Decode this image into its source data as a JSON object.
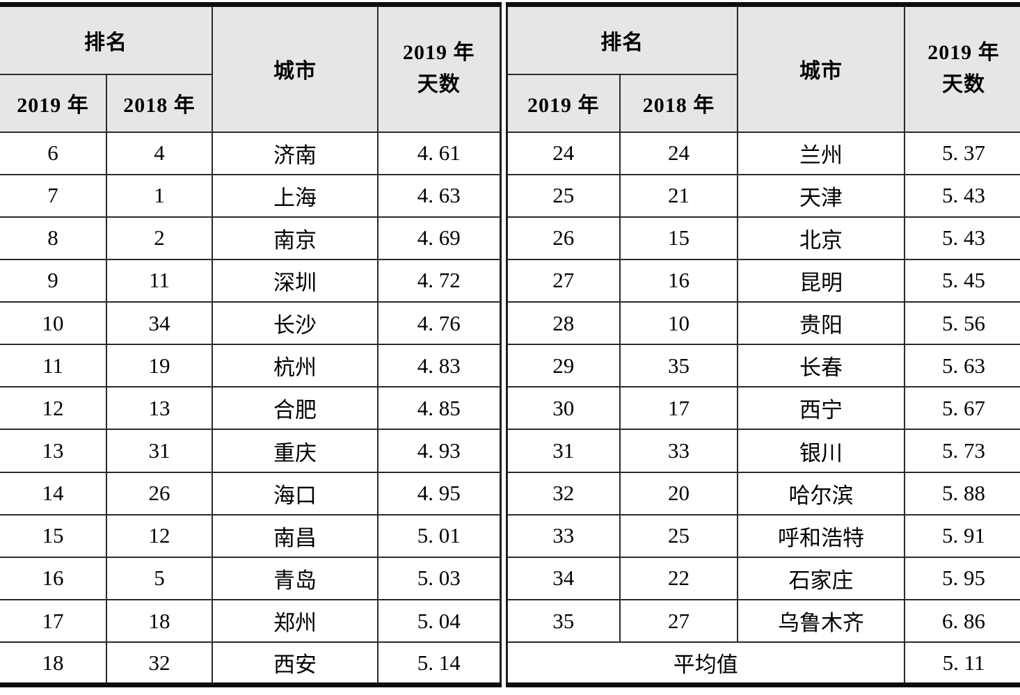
{
  "colors": {
    "header_bg": "#e6e6e6",
    "grid_border": "#2a2a2a",
    "outer_border": "#0d0d0d",
    "text": "#000000",
    "background": "#ffffff"
  },
  "table": {
    "headers": {
      "rank_group": "排名",
      "rank_2019": "2019 年",
      "rank_2018": "2018 年",
      "city": "城市",
      "days_line1": "2019 年",
      "days_line2": "天数"
    },
    "left_rows": [
      {
        "rank_2019": "6",
        "rank_2018": "4",
        "city": "济南",
        "days": "4. 61"
      },
      {
        "rank_2019": "7",
        "rank_2018": "1",
        "city": "上海",
        "days": "4. 63"
      },
      {
        "rank_2019": "8",
        "rank_2018": "2",
        "city": "南京",
        "days": "4. 69"
      },
      {
        "rank_2019": "9",
        "rank_2018": "11",
        "city": "深圳",
        "days": "4. 72"
      },
      {
        "rank_2019": "10",
        "rank_2018": "34",
        "city": "长沙",
        "days": "4. 76"
      },
      {
        "rank_2019": "11",
        "rank_2018": "19",
        "city": "杭州",
        "days": "4. 83"
      },
      {
        "rank_2019": "12",
        "rank_2018": "13",
        "city": "合肥",
        "days": "4. 85"
      },
      {
        "rank_2019": "13",
        "rank_2018": "31",
        "city": "重庆",
        "days": "4. 93"
      },
      {
        "rank_2019": "14",
        "rank_2018": "26",
        "city": "海口",
        "days": "4. 95"
      },
      {
        "rank_2019": "15",
        "rank_2018": "12",
        "city": "南昌",
        "days": "5. 01"
      },
      {
        "rank_2019": "16",
        "rank_2018": "5",
        "city": "青岛",
        "days": "5. 03"
      },
      {
        "rank_2019": "17",
        "rank_2018": "18",
        "city": "郑州",
        "days": "5. 04"
      },
      {
        "rank_2019": "18",
        "rank_2018": "32",
        "city": "西安",
        "days": "5. 14"
      }
    ],
    "right_rows": [
      {
        "rank_2019": "24",
        "rank_2018": "24",
        "city": "兰州",
        "days": "5. 37"
      },
      {
        "rank_2019": "25",
        "rank_2018": "21",
        "city": "天津",
        "days": "5. 43"
      },
      {
        "rank_2019": "26",
        "rank_2018": "15",
        "city": "北京",
        "days": "5. 43"
      },
      {
        "rank_2019": "27",
        "rank_2018": "16",
        "city": "昆明",
        "days": "5. 45"
      },
      {
        "rank_2019": "28",
        "rank_2018": "10",
        "city": "贵阳",
        "days": "5. 56"
      },
      {
        "rank_2019": "29",
        "rank_2018": "35",
        "city": "长春",
        "days": "5. 63"
      },
      {
        "rank_2019": "30",
        "rank_2018": "17",
        "city": "西宁",
        "days": "5. 67"
      },
      {
        "rank_2019": "31",
        "rank_2018": "33",
        "city": "银川",
        "days": "5. 73"
      },
      {
        "rank_2019": "32",
        "rank_2018": "20",
        "city": "哈尔滨",
        "days": "5. 88"
      },
      {
        "rank_2019": "33",
        "rank_2018": "25",
        "city": "呼和浩特",
        "days": "5. 91"
      },
      {
        "rank_2019": "34",
        "rank_2018": "22",
        "city": "石家庄",
        "days": "5. 95"
      },
      {
        "rank_2019": "35",
        "rank_2018": "27",
        "city": "乌鲁木齐",
        "days": "6. 86"
      }
    ],
    "average": {
      "label": "平均值",
      "value": "5. 11"
    }
  }
}
